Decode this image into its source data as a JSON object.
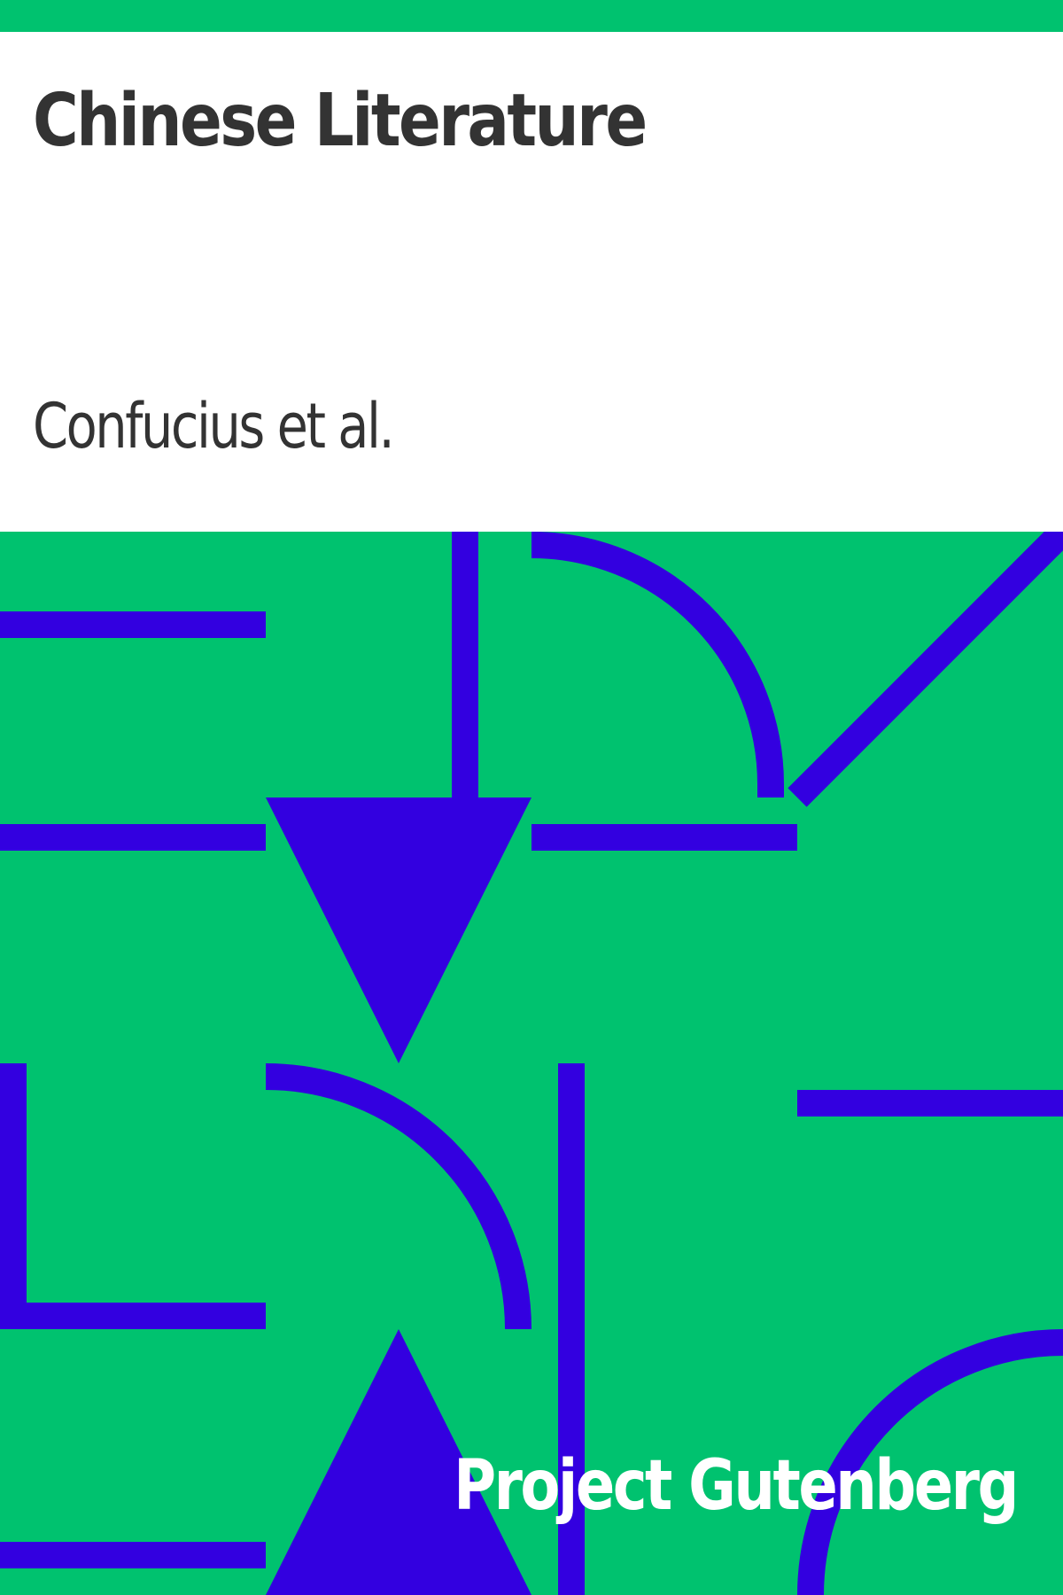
{
  "cover": {
    "title": "Chinese Literature",
    "author": "Confucius et al.",
    "publisher": "Project Gutenberg"
  },
  "colors": {
    "background": "#00c26f",
    "pattern": "#3300e0",
    "title_text": "#333333",
    "panel": "#ffffff",
    "publisher_text": "#ffffff"
  }
}
